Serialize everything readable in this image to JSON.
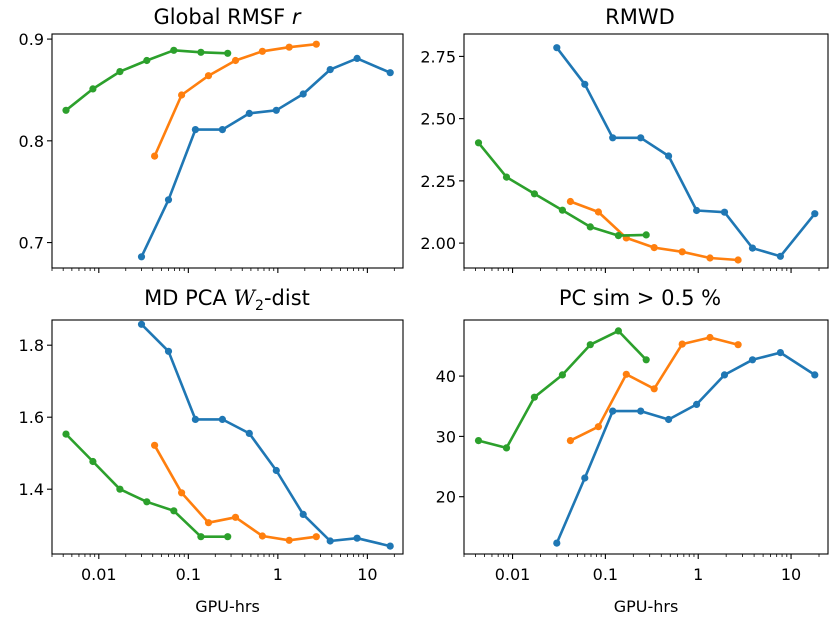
{
  "colors": {
    "blue": "#1f77b4",
    "orange": "#ff7f0e",
    "green": "#2ca02c"
  },
  "chart_data": [
    {
      "type": "line",
      "title": "Global RMSF r",
      "title_main": "Global RMSF ",
      "title_italic": "r",
      "xscale": "log",
      "xlim": [
        0.003,
        25
      ],
      "ylim": [
        0.675,
        0.905
      ],
      "yticks": [
        "0.7",
        "0.8",
        "0.9"
      ],
      "ytick_values": [
        0.7,
        0.8,
        0.9
      ],
      "xticks": [],
      "xlabel": "",
      "series": [
        {
          "color": "blue",
          "x": [
            0.03,
            0.06,
            0.12,
            0.24,
            0.48,
            0.96,
            1.92,
            3.84,
            7.68,
            18
          ],
          "y": [
            0.686,
            0.742,
            0.811,
            0.811,
            0.827,
            0.83,
            0.846,
            0.87,
            0.881,
            0.867
          ]
        },
        {
          "color": "orange",
          "x": [
            0.042,
            0.084,
            0.168,
            0.336,
            0.672,
            1.34,
            2.69
          ],
          "y": [
            0.785,
            0.845,
            0.864,
            0.879,
            0.888,
            0.892,
            0.895
          ]
        },
        {
          "color": "green",
          "x": [
            0.0043,
            0.0086,
            0.0172,
            0.0344,
            0.0688,
            0.138,
            0.275
          ],
          "y": [
            0.83,
            0.851,
            0.868,
            0.879,
            0.889,
            0.887,
            0.886
          ]
        }
      ]
    },
    {
      "type": "line",
      "title": "RMWD",
      "xscale": "log",
      "xlim": [
        0.003,
        25
      ],
      "ylim": [
        1.9,
        2.84
      ],
      "yticks": [
        "2.00",
        "2.25",
        "2.50",
        "2.75"
      ],
      "ytick_values": [
        2.0,
        2.25,
        2.5,
        2.75
      ],
      "xticks": [],
      "xlabel": "",
      "series": [
        {
          "color": "blue",
          "x": [
            0.03,
            0.06,
            0.12,
            0.24,
            0.48,
            0.96,
            1.92,
            3.84,
            7.68,
            18
          ],
          "y": [
            2.785,
            2.638,
            2.423,
            2.423,
            2.35,
            2.131,
            2.124,
            1.98,
            1.947,
            2.118
          ]
        },
        {
          "color": "orange",
          "x": [
            0.042,
            0.084,
            0.168,
            0.336,
            0.672,
            1.34,
            2.69
          ],
          "y": [
            2.167,
            2.125,
            2.021,
            1.982,
            1.965,
            1.94,
            1.932
          ]
        },
        {
          "color": "green",
          "x": [
            0.0043,
            0.0086,
            0.0172,
            0.0344,
            0.0688,
            0.138,
            0.275
          ],
          "y": [
            2.403,
            2.265,
            2.198,
            2.132,
            2.065,
            2.03,
            2.033
          ]
        }
      ]
    },
    {
      "type": "line",
      "title": "MD PCA W2-dist",
      "title_main": "MD PCA ",
      "title_script": "W",
      "title_sub": "2",
      "title_tail": "-dist",
      "xscale": "log",
      "xlim": [
        0.003,
        25
      ],
      "ylim": [
        1.22,
        1.87
      ],
      "yticks": [
        "1.4",
        "1.6",
        "1.8"
      ],
      "ytick_values": [
        1.4,
        1.6,
        1.8
      ],
      "xticks": [
        "0.01",
        "0.1",
        "1",
        "10"
      ],
      "xtick_values": [
        0.01,
        0.1,
        1,
        10
      ],
      "xlabel": "GPU-hrs",
      "series": [
        {
          "color": "blue",
          "x": [
            0.03,
            0.06,
            0.12,
            0.24,
            0.48,
            0.96,
            1.92,
            3.84,
            7.68,
            18
          ],
          "y": [
            1.858,
            1.783,
            1.594,
            1.594,
            1.555,
            1.452,
            1.33,
            1.256,
            1.264,
            1.242
          ]
        },
        {
          "color": "orange",
          "x": [
            0.042,
            0.084,
            0.168,
            0.336,
            0.672,
            1.34,
            2.69
          ],
          "y": [
            1.522,
            1.39,
            1.307,
            1.322,
            1.27,
            1.258,
            1.268
          ]
        },
        {
          "color": "green",
          "x": [
            0.0043,
            0.0086,
            0.0172,
            0.0344,
            0.0688,
            0.138,
            0.275
          ],
          "y": [
            1.553,
            1.477,
            1.4,
            1.365,
            1.34,
            1.268,
            1.268
          ]
        }
      ]
    },
    {
      "type": "line",
      "title": "PC sim > 0.5 %",
      "xscale": "log",
      "xlim": [
        0.003,
        25
      ],
      "ylim": [
        10.5,
        49.3
      ],
      "yticks": [
        "20",
        "30",
        "40"
      ],
      "ytick_values": [
        20,
        30,
        40
      ],
      "xticks": [
        "0.01",
        "0.1",
        "1",
        "10"
      ],
      "xtick_values": [
        0.01,
        0.1,
        1,
        10
      ],
      "xlabel": "GPU-hrs",
      "series": [
        {
          "color": "blue",
          "x": [
            0.03,
            0.06,
            0.12,
            0.24,
            0.48,
            0.96,
            1.92,
            3.84,
            7.68,
            18
          ],
          "y": [
            12.3,
            23.1,
            34.2,
            34.2,
            32.8,
            35.3,
            40.2,
            42.7,
            43.9,
            40.2
          ]
        },
        {
          "color": "orange",
          "x": [
            0.042,
            0.084,
            0.168,
            0.336,
            0.672,
            1.34,
            2.69
          ],
          "y": [
            29.3,
            31.6,
            40.3,
            37.9,
            45.3,
            46.4,
            45.2
          ]
        },
        {
          "color": "green",
          "x": [
            0.0043,
            0.0086,
            0.0172,
            0.0344,
            0.0688,
            0.138,
            0.275
          ],
          "y": [
            29.3,
            28.1,
            36.5,
            40.2,
            45.2,
            47.5,
            42.7
          ]
        }
      ]
    }
  ]
}
